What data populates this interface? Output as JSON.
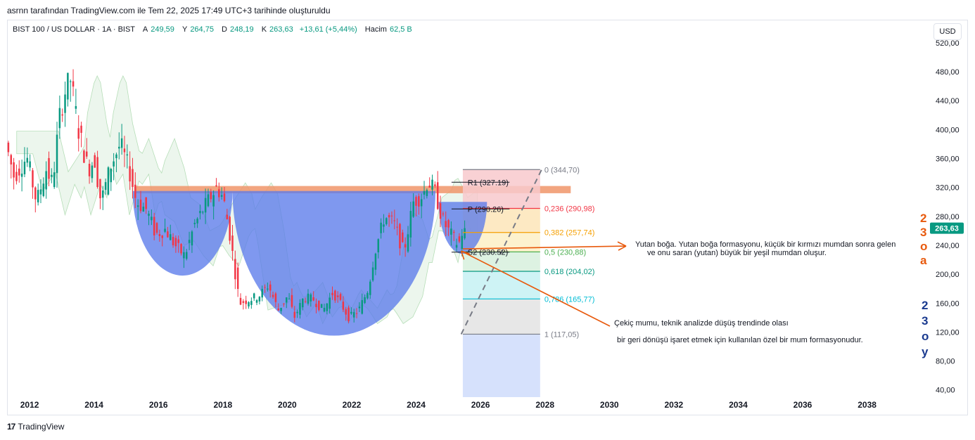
{
  "caption": "asrnn tarafından TradingView.com ile Tem 22, 2025 17:49 UTC+3 tarihinde oluşturuldu",
  "legend": {
    "symbol": "BIST 100 / US DOLLAR · 1A · BIST",
    "o_label": "A",
    "o_value": "249,59",
    "h_label": "Y",
    "h_value": "264,75",
    "l_label": "D",
    "l_value": "248,19",
    "c_label": "K",
    "c_value": "263,63",
    "change": "+13,61 (+5,44%)",
    "vol_label": "Hacim",
    "vol_value": "62,5 B"
  },
  "currency_button": "USD",
  "footer_brand": "TradingView",
  "footer_logo": "17",
  "colors": {
    "up": "#089981",
    "down": "#f23645",
    "dome": "#5b7bea",
    "resistance_band": "#f0956a",
    "arrow": "#e8590c"
  },
  "chart_data": {
    "type": "candlestick",
    "x_axis": {
      "range": [
        2011.3,
        2039.8
      ],
      "tick_values": [
        2012,
        2014,
        2016,
        2018,
        2020,
        2022,
        2024,
        2026,
        2028,
        2030,
        2032,
        2034,
        2036,
        2038
      ],
      "tick_labels": [
        "2012",
        "2014",
        "2016",
        "2018",
        "2020",
        "2022",
        "2024",
        "2026",
        "2028",
        "2030",
        "2032",
        "2034",
        "2036",
        "2038"
      ]
    },
    "y_axis": {
      "range": [
        30,
        552
      ],
      "tick_values": [
        40,
        80,
        120,
        160,
        200,
        240,
        280,
        320,
        360,
        400,
        440,
        480,
        520
      ],
      "tick_labels": [
        "40,00",
        "80,00",
        "120,00",
        "160,00",
        "200,00",
        "240,00",
        "280,00",
        "320,00",
        "360,00",
        "400,00",
        "440,00",
        "480,00",
        "520,00"
      ]
    },
    "last_price": {
      "value": 263.63,
      "label": "263,63"
    },
    "price_path": [
      [
        2011.3,
        390
      ],
      [
        2011.6,
        335
      ],
      [
        2012.0,
        362
      ],
      [
        2012.3,
        300
      ],
      [
        2012.6,
        345
      ],
      [
        2012.8,
        325
      ],
      [
        2013.0,
        415
      ],
      [
        2013.2,
        455
      ],
      [
        2013.35,
        470
      ],
      [
        2013.6,
        400
      ],
      [
        2013.9,
        345
      ],
      [
        2014.1,
        360
      ],
      [
        2014.3,
        300
      ],
      [
        2014.6,
        350
      ],
      [
        2014.9,
        380
      ],
      [
        2015.2,
        340
      ],
      [
        2015.4,
        300
      ],
      [
        2015.7,
        290
      ],
      [
        2016.0,
        255
      ],
      [
        2016.3,
        262
      ],
      [
        2016.6,
        240
      ],
      [
        2016.9,
        225
      ],
      [
        2017.2,
        268
      ],
      [
        2017.6,
        300
      ],
      [
        2017.9,
        320
      ],
      [
        2018.1,
        305
      ],
      [
        2018.3,
        255
      ],
      [
        2018.6,
        160
      ],
      [
        2018.9,
        165
      ],
      [
        2019.2,
        170
      ],
      [
        2019.5,
        185
      ],
      [
        2019.8,
        150
      ],
      [
        2020.1,
        170
      ],
      [
        2020.3,
        140
      ],
      [
        2020.6,
        168
      ],
      [
        2020.9,
        165
      ],
      [
        2021.2,
        150
      ],
      [
        2021.5,
        175
      ],
      [
        2021.8,
        155
      ],
      [
        2022.0,
        140
      ],
      [
        2022.3,
        150
      ],
      [
        2022.6,
        180
      ],
      [
        2022.8,
        230
      ],
      [
        2023.1,
        280
      ],
      [
        2023.4,
        270
      ],
      [
        2023.7,
        230
      ],
      [
        2024.0,
        300
      ],
      [
        2024.3,
        310
      ],
      [
        2024.45,
        330
      ],
      [
        2024.7,
        310
      ],
      [
        2024.9,
        275
      ],
      [
        2025.2,
        252
      ],
      [
        2025.4,
        240
      ],
      [
        2025.55,
        263.63
      ]
    ],
    "candle_count": 170,
    "resistance_band": {
      "low": 312,
      "high": 322
    },
    "fibonacci": {
      "levels": [
        {
          "ratio_label": "0 (344,70)",
          "value": 344.7,
          "color": "#787b86"
        },
        {
          "ratio_label": "0,236 (290,98)",
          "value": 290.98,
          "color": "#f23645"
        },
        {
          "ratio_label": "0,382 (257,74)",
          "value": 257.74,
          "color": "#f59f00"
        },
        {
          "ratio_label": "0,5 (230,88)",
          "value": 230.88,
          "color": "#4caf50"
        },
        {
          "ratio_label": "0,618 (204,02)",
          "value": 204.02,
          "color": "#089981"
        },
        {
          "ratio_label": "0,786 (165,77)",
          "value": 165.77,
          "color": "#00bcd4"
        },
        {
          "ratio_label": "1 (117,05)",
          "value": 117.05,
          "color": "#787b86"
        }
      ]
    },
    "pivots": [
      {
        "label": "R1 (327.19)",
        "value": 327.19
      },
      {
        "label": "P (290.26)",
        "value": 290.26
      },
      {
        "label": "S2 (230.52)",
        "value": 230.52
      }
    ],
    "annotations": [
      {
        "text_lines": [
          "Yutan boğa. Yutan boğa formasyonu, küçük bir kırmızı mumdan sonra gelen",
          "ve onu saran (yutan) büyük bir yeşil mumdan oluşur."
        ],
        "arrow_to_value": 235,
        "arrow_to_x": 2025.45
      },
      {
        "text_lines": [
          "Çekiç mumu, teknik analizde düşüş trendinde olası",
          "bir geri dönüşü işaret etmek için kullanılan özel bir mum formasyonudur."
        ],
        "arrow_to_value": 232,
        "arrow_to_x": 2025.4
      }
    ],
    "side_labels": {
      "orange": [
        "2",
        "3",
        "o",
        "a"
      ],
      "navy": [
        "2",
        "3",
        "o",
        "y"
      ]
    }
  }
}
